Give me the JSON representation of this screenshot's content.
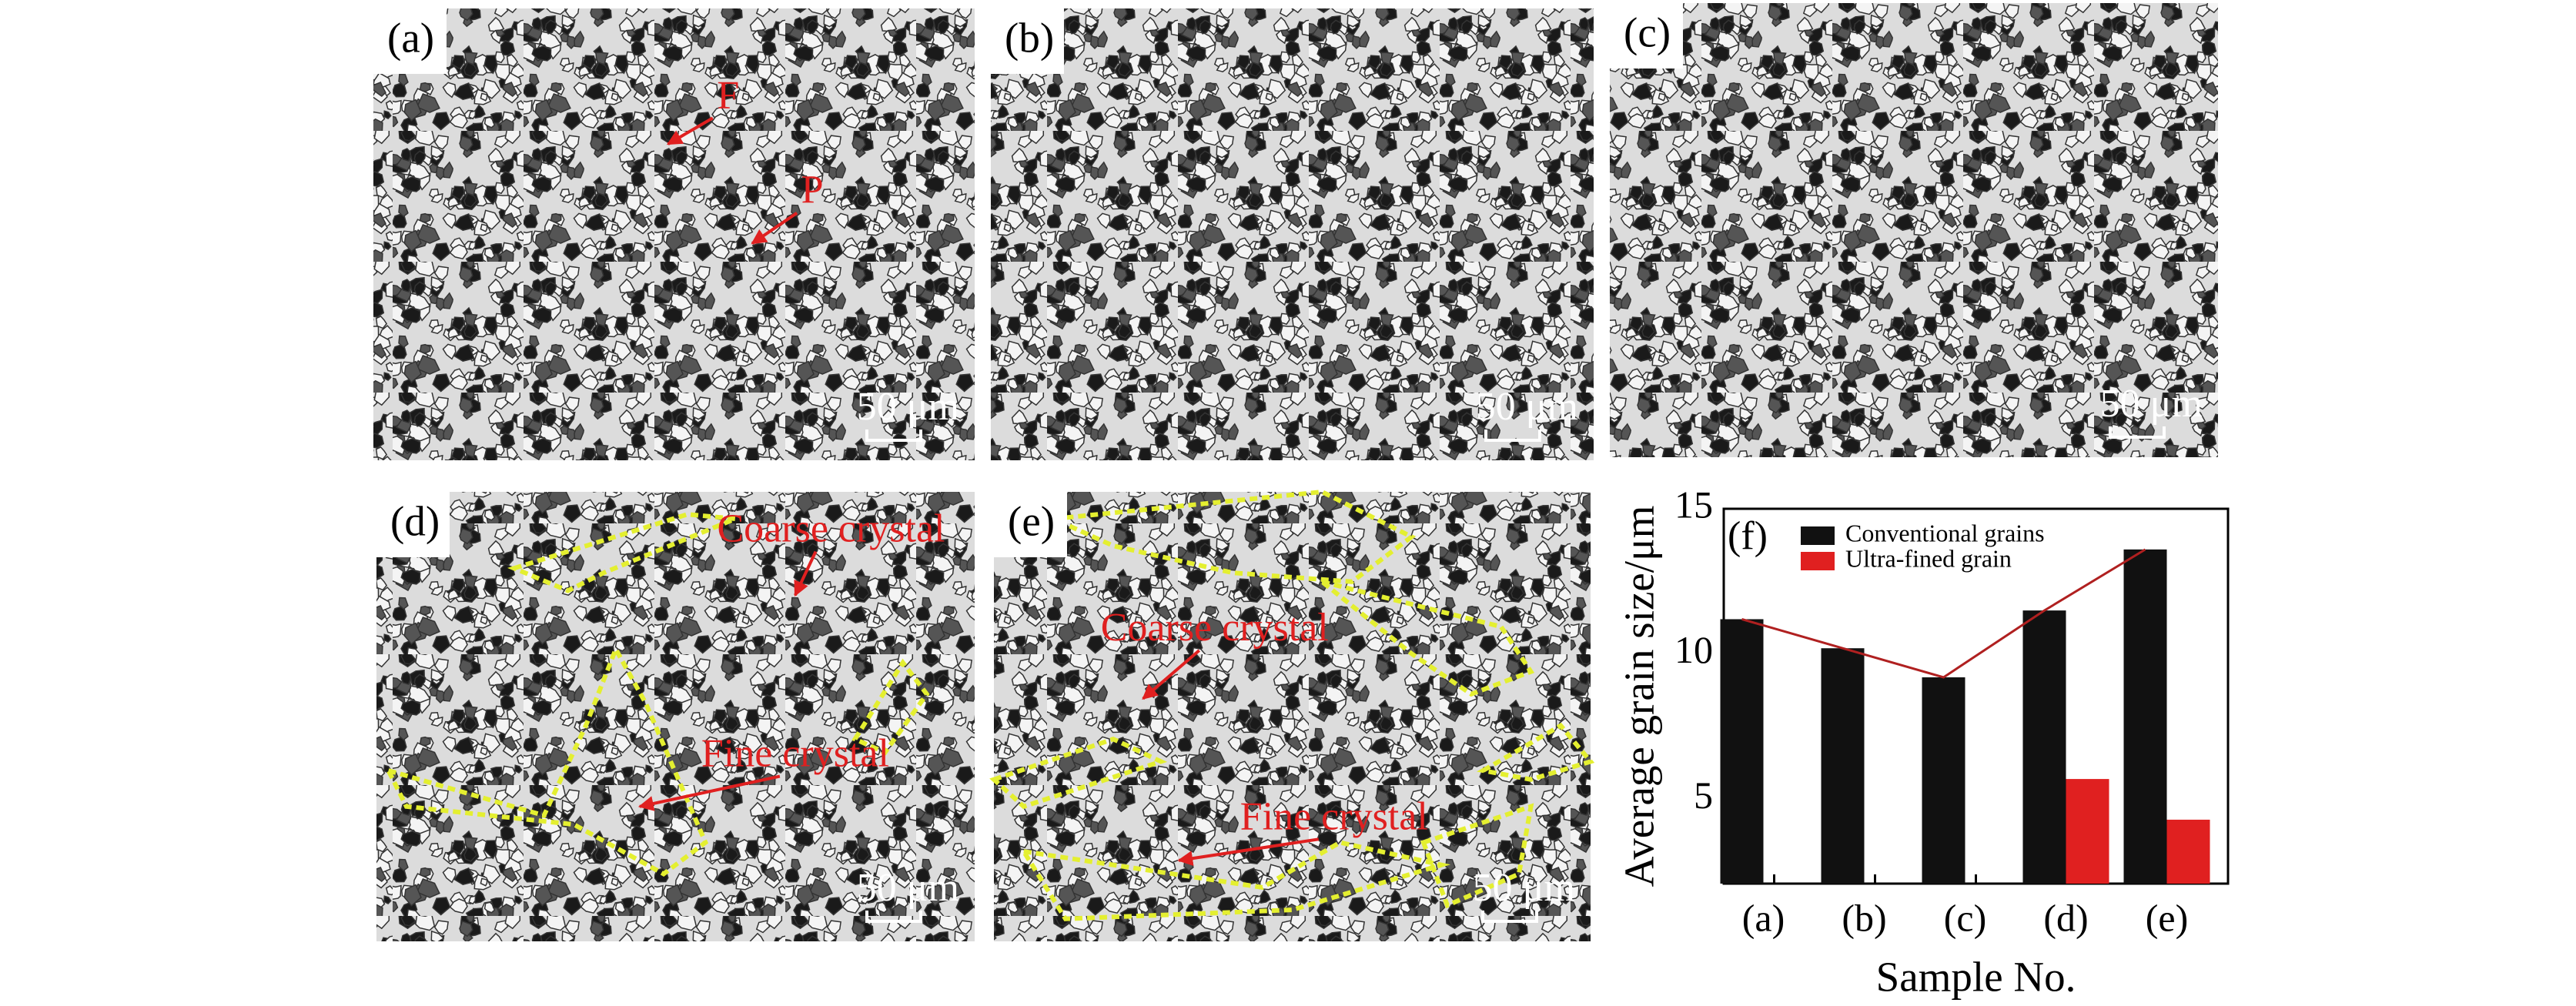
{
  "panels": [
    {
      "label": "(a)",
      "scale": "50 μm",
      "annotations": [
        "F",
        "P"
      ]
    },
    {
      "label": "(b)",
      "scale": "50 μm"
    },
    {
      "label": "(c)",
      "scale": "50 μm"
    },
    {
      "label": "(d)",
      "scale": "50 μm",
      "annotations": [
        "Coarse crystal",
        "Fine crystal"
      ]
    },
    {
      "label": "(e)",
      "scale": "50 μm",
      "annotations": [
        "Coarse crystal",
        "Fine crystal"
      ]
    }
  ],
  "chart_data": {
    "type": "bar",
    "panel_label": "(f)",
    "x_label": "Sample No.",
    "y_label": "Average grain size/μm",
    "categories": [
      "(a)",
      "(b)",
      "(c)",
      "(d)",
      "(e)"
    ],
    "series": [
      {
        "name": "Conventional grains",
        "color": "#111111",
        "values": [
          11.2,
          10.2,
          9.2,
          11.5,
          13.6
        ]
      },
      {
        "name": "Ultra-fined grain",
        "color": "#e02020",
        "values": [
          null,
          null,
          null,
          5.7,
          4.3
        ]
      }
    ],
    "trend_color": "#b02020",
    "ylim": [
      2.1,
      15
    ],
    "yticks": [
      5,
      10,
      15
    ],
    "legend": "upper left"
  }
}
